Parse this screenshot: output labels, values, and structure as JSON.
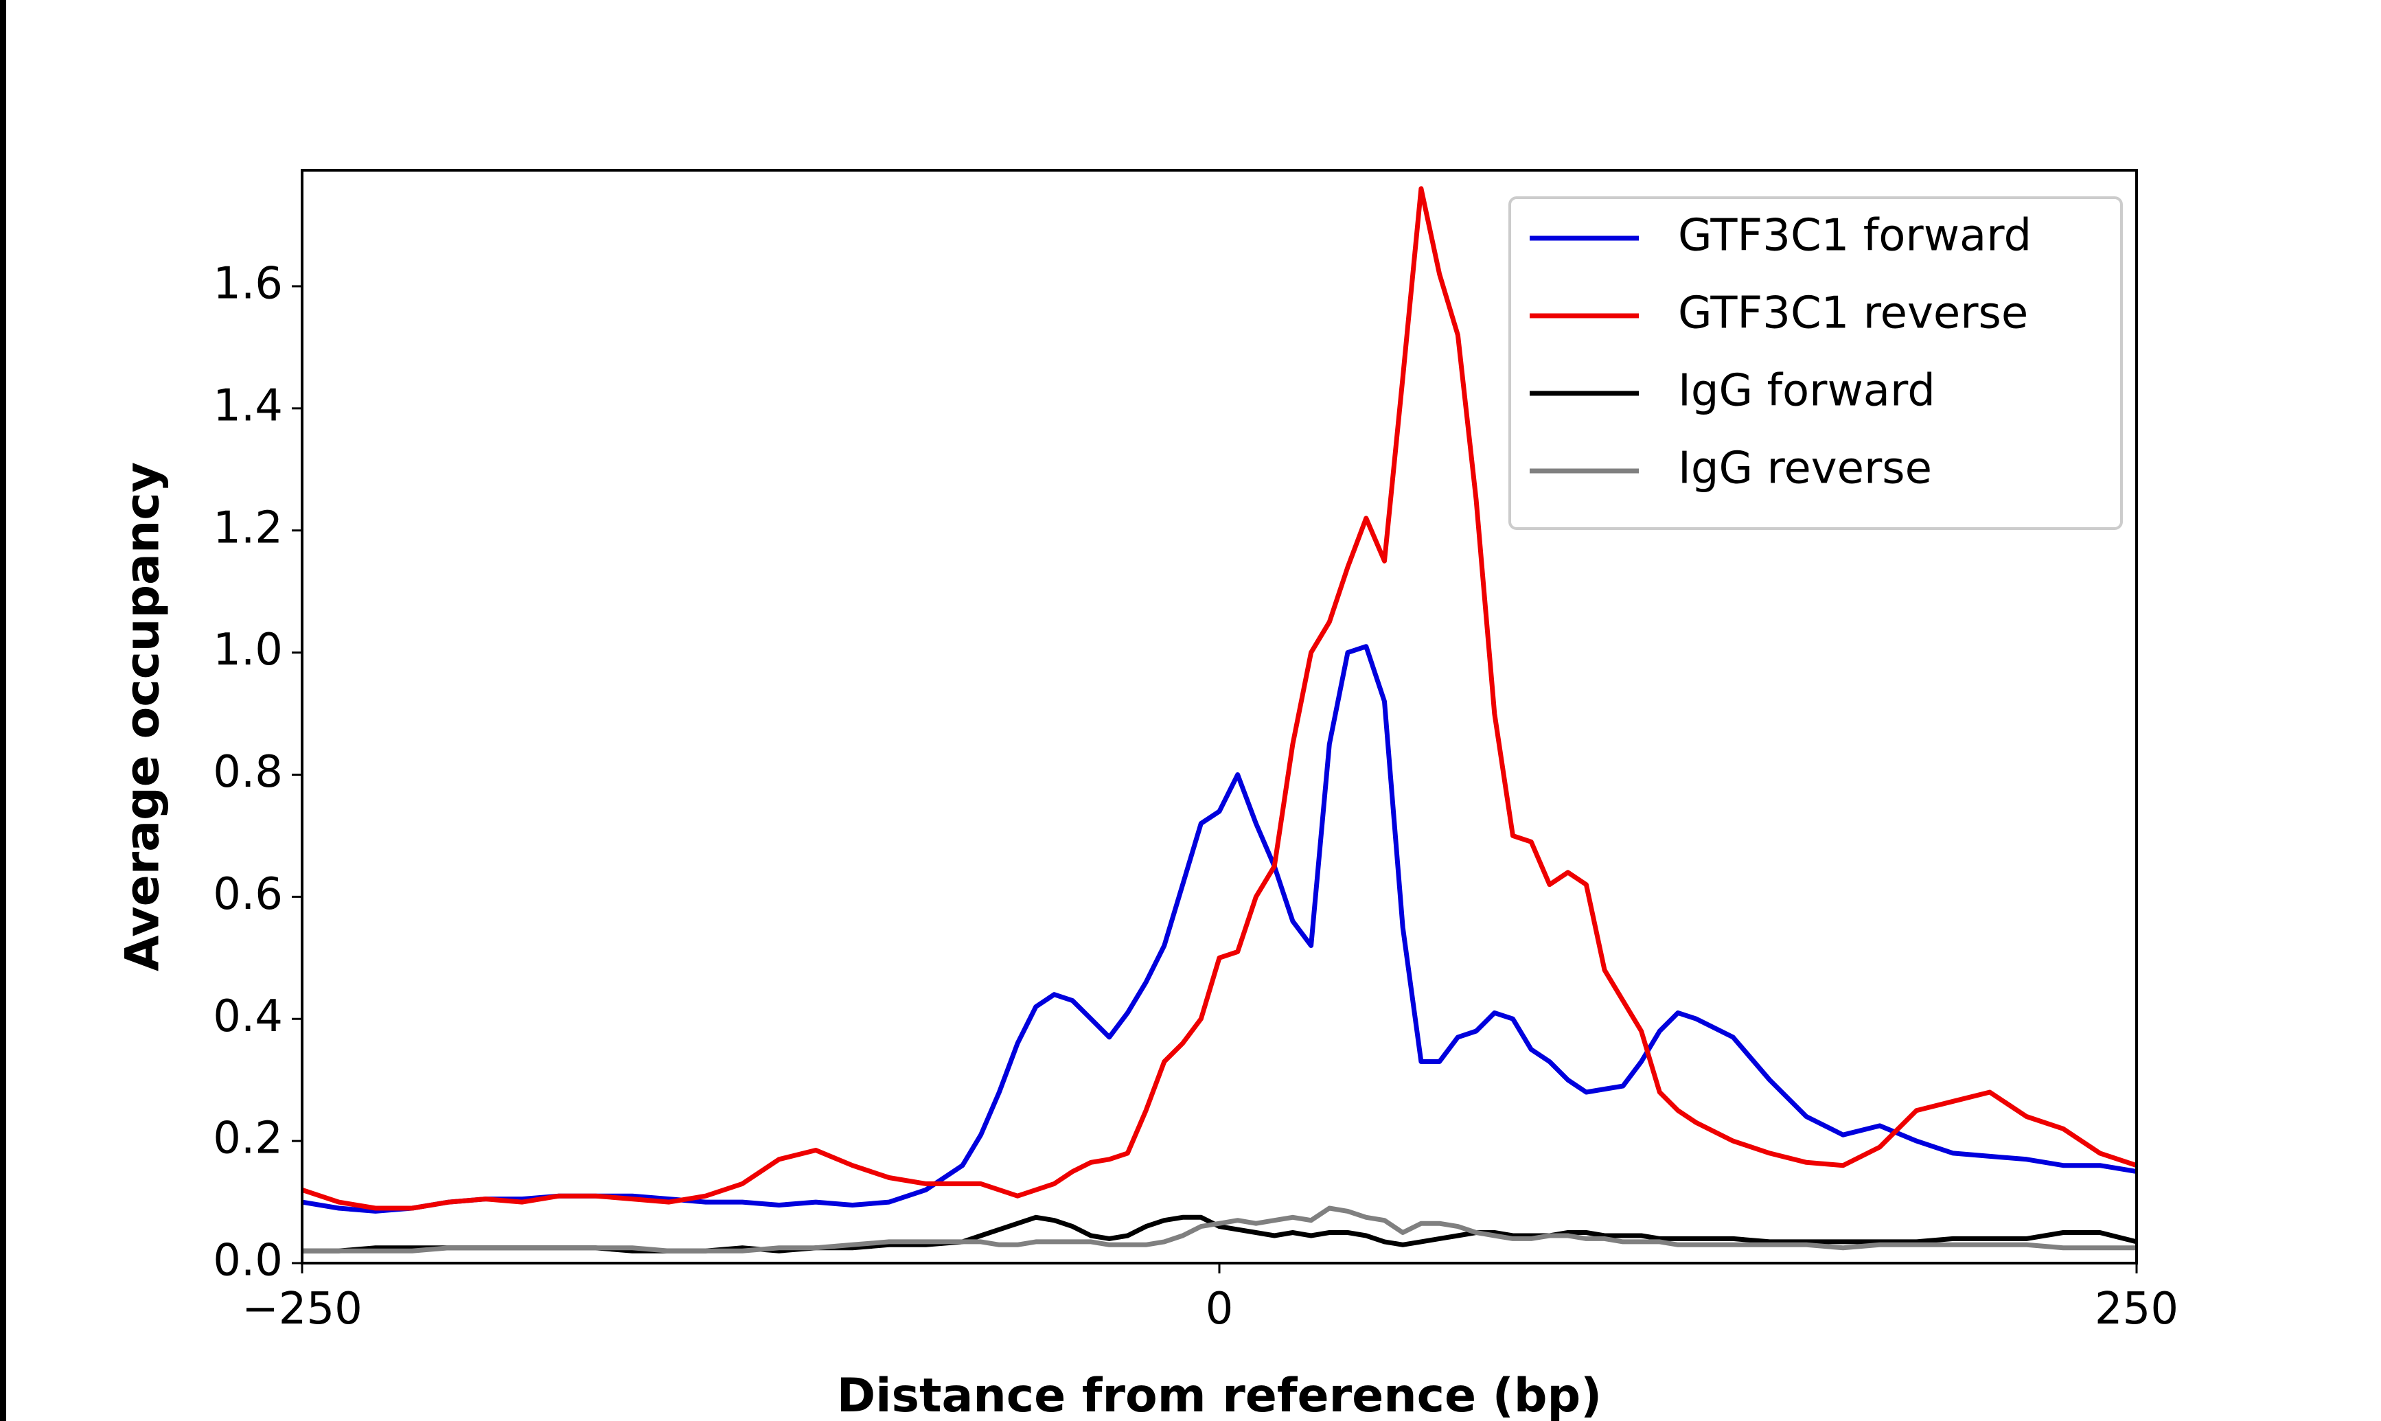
{
  "chart_data": {
    "type": "line",
    "xlabel": "Distance from reference (bp)",
    "ylabel": "Average occupancy",
    "xlim": [
      -250,
      250
    ],
    "xticks": [
      {
        "value": -250,
        "label": "−250"
      },
      0,
      250
    ],
    "ylim": [
      0,
      1.79
    ],
    "yticks": [
      {
        "value": 0,
        "label": "0.0"
      },
      0.2,
      0.4,
      0.6,
      0.8,
      {
        "value": 1,
        "label": "1.0"
      },
      1.2,
      1.4,
      1.6
    ],
    "grid": false,
    "legend": "upper right",
    "x": [
      -250,
      -240,
      -230,
      -220,
      -210,
      -200,
      -190,
      -180,
      -170,
      -160,
      -150,
      -140,
      -130,
      -120,
      -110,
      -100,
      -90,
      -80,
      -70,
      -65,
      -60,
      -55,
      -50,
      -45,
      -40,
      -35,
      -30,
      -25,
      -20,
      -15,
      -10,
      -5,
      0,
      5,
      10,
      15,
      20,
      25,
      30,
      35,
      40,
      45,
      50,
      55,
      60,
      65,
      70,
      75,
      80,
      85,
      90,
      95,
      100,
      105,
      110,
      115,
      120,
      125,
      130,
      140,
      150,
      160,
      170,
      180,
      190,
      200,
      210,
      220,
      230,
      240,
      250
    ],
    "series": [
      {
        "name": "GTF3C1 forward",
        "color": "#0000dd",
        "values": [
          0.1,
          0.09,
          0.085,
          0.09,
          0.1,
          0.105,
          0.105,
          0.11,
          0.11,
          0.11,
          0.105,
          0.1,
          0.1,
          0.095,
          0.1,
          0.095,
          0.1,
          0.12,
          0.16,
          0.21,
          0.28,
          0.36,
          0.42,
          0.44,
          0.43,
          0.4,
          0.37,
          0.41,
          0.46,
          0.52,
          0.62,
          0.72,
          0.74,
          0.8,
          0.72,
          0.65,
          0.56,
          0.52,
          0.85,
          1.0,
          1.01,
          0.92,
          0.55,
          0.33,
          0.33,
          0.37,
          0.38,
          0.41,
          0.4,
          0.35,
          0.33,
          0.3,
          0.28,
          0.285,
          0.29,
          0.33,
          0.38,
          0.41,
          0.4,
          0.37,
          0.3,
          0.24,
          0.21,
          0.225,
          0.2,
          0.18,
          0.175,
          0.17,
          0.16,
          0.16,
          0.15
        ]
      },
      {
        "name": "GTF3C1 reverse",
        "color": "#ee0000",
        "values": [
          0.12,
          0.1,
          0.09,
          0.09,
          0.1,
          0.105,
          0.1,
          0.11,
          0.11,
          0.105,
          0.1,
          0.11,
          0.13,
          0.17,
          0.185,
          0.16,
          0.14,
          0.13,
          0.13,
          0.13,
          0.12,
          0.11,
          0.12,
          0.13,
          0.15,
          0.165,
          0.17,
          0.18,
          0.25,
          0.33,
          0.36,
          0.4,
          0.5,
          0.51,
          0.6,
          0.65,
          0.85,
          1.0,
          1.05,
          1.14,
          1.22,
          1.15,
          1.45,
          1.76,
          1.62,
          1.52,
          1.25,
          0.9,
          0.7,
          0.69,
          0.62,
          0.64,
          0.62,
          0.48,
          0.43,
          0.38,
          0.28,
          0.25,
          0.23,
          0.2,
          0.18,
          0.165,
          0.16,
          0.19,
          0.25,
          0.265,
          0.28,
          0.24,
          0.22,
          0.18,
          0.16
        ]
      },
      {
        "name": "IgG forward",
        "color": "#000000",
        "values": [
          0.02,
          0.02,
          0.025,
          0.025,
          0.025,
          0.025,
          0.025,
          0.025,
          0.025,
          0.02,
          0.02,
          0.02,
          0.025,
          0.02,
          0.025,
          0.025,
          0.03,
          0.03,
          0.035,
          0.045,
          0.055,
          0.065,
          0.075,
          0.07,
          0.06,
          0.045,
          0.04,
          0.045,
          0.06,
          0.07,
          0.075,
          0.075,
          0.06,
          0.055,
          0.05,
          0.045,
          0.05,
          0.045,
          0.05,
          0.05,
          0.045,
          0.035,
          0.03,
          0.035,
          0.04,
          0.045,
          0.05,
          0.05,
          0.045,
          0.045,
          0.045,
          0.05,
          0.05,
          0.045,
          0.045,
          0.045,
          0.04,
          0.04,
          0.04,
          0.04,
          0.035,
          0.035,
          0.035,
          0.035,
          0.035,
          0.04,
          0.04,
          0.04,
          0.05,
          0.05,
          0.035
        ]
      },
      {
        "name": "IgG reverse",
        "color": "#808080",
        "values": [
          0.02,
          0.02,
          0.02,
          0.02,
          0.025,
          0.025,
          0.025,
          0.025,
          0.025,
          0.025,
          0.02,
          0.02,
          0.02,
          0.025,
          0.025,
          0.03,
          0.035,
          0.035,
          0.035,
          0.035,
          0.03,
          0.03,
          0.035,
          0.035,
          0.035,
          0.035,
          0.03,
          0.03,
          0.03,
          0.035,
          0.045,
          0.06,
          0.065,
          0.07,
          0.065,
          0.07,
          0.075,
          0.07,
          0.09,
          0.085,
          0.075,
          0.07,
          0.05,
          0.065,
          0.065,
          0.06,
          0.05,
          0.045,
          0.04,
          0.04,
          0.045,
          0.045,
          0.04,
          0.04,
          0.035,
          0.035,
          0.035,
          0.03,
          0.03,
          0.03,
          0.03,
          0.03,
          0.025,
          0.03,
          0.03,
          0.03,
          0.03,
          0.03,
          0.025,
          0.025,
          0.025
        ]
      }
    ]
  }
}
